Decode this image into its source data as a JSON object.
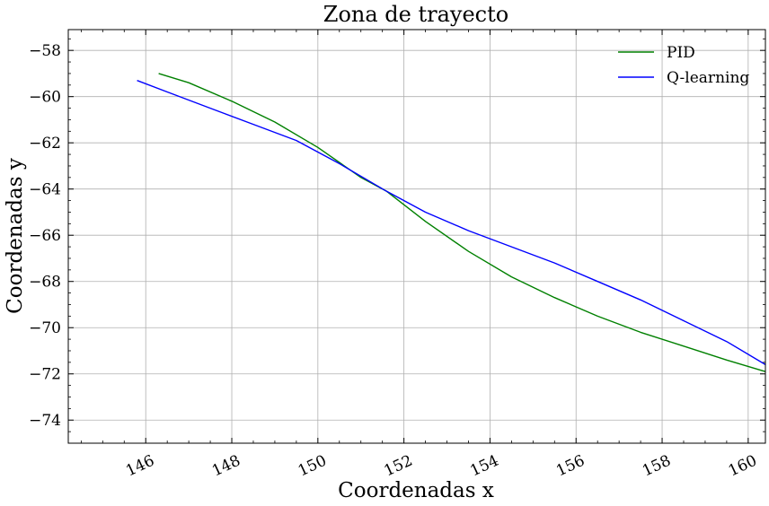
{
  "chart_data": {
    "type": "line",
    "title": "Zona de trayecto",
    "xlabel": "Coordenadas x",
    "ylabel": "Coordenadas y",
    "xlim": [
      144.2,
      160.4
    ],
    "ylim": [
      -75,
      -57.1
    ],
    "xticks": [
      146,
      148,
      150,
      152,
      154,
      156,
      158,
      160
    ],
    "yticks": [
      -58,
      -60,
      -62,
      -64,
      -66,
      -68,
      -70,
      -72,
      -74
    ],
    "xtick_labels": [
      "146",
      "148",
      "150",
      "152",
      "154",
      "156",
      "158",
      "160"
    ],
    "ytick_labels": [
      "−58",
      "−60",
      "−62",
      "−64",
      "−66",
      "−68",
      "−70",
      "−72",
      "−74"
    ],
    "grid": true,
    "legend_position": "top-right",
    "series": [
      {
        "name": "PID",
        "color": "#008000",
        "x": [
          146.3,
          147.0,
          148.0,
          149.0,
          150.0,
          151.0,
          151.6,
          152.5,
          153.5,
          154.5,
          155.5,
          156.5,
          157.5,
          158.5,
          159.5,
          160.4
        ],
        "y": [
          -59.0,
          -59.4,
          -60.2,
          -61.1,
          -62.2,
          -63.5,
          -64.1,
          -65.4,
          -66.7,
          -67.8,
          -68.7,
          -69.5,
          -70.2,
          -70.8,
          -71.4,
          -71.9
        ]
      },
      {
        "name": "Q-learning",
        "color": "#0000ff",
        "x": [
          145.8,
          146.5,
          147.5,
          148.5,
          149.5,
          150.5,
          151.6,
          152.5,
          153.5,
          154.5,
          155.5,
          156.5,
          157.5,
          158.5,
          159.5,
          160.4
        ],
        "y": [
          -59.3,
          -59.8,
          -60.5,
          -61.2,
          -61.9,
          -62.9,
          -64.1,
          -65.0,
          -65.8,
          -66.5,
          -67.2,
          -68.0,
          -68.8,
          -69.7,
          -70.6,
          -71.6
        ]
      }
    ]
  }
}
